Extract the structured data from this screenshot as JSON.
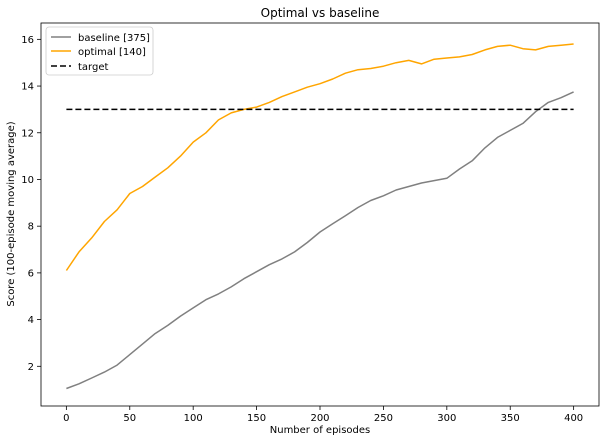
{
  "chart_data": {
    "type": "line",
    "title": "Optimal vs baseline",
    "xlabel": "Number of episodes",
    "ylabel": "Score (100-episode moving average)",
    "xlim": [
      -20,
      420
    ],
    "ylim": [
      0.3,
      16.7
    ],
    "xticks": [
      0,
      50,
      100,
      150,
      200,
      250,
      300,
      350,
      400
    ],
    "yticks": [
      2,
      4,
      6,
      8,
      10,
      12,
      14,
      16
    ],
    "grid": false,
    "legend_position": "top-left",
    "series": [
      {
        "name": "baseline [375]",
        "color": "#808080",
        "style": "solid",
        "x": [
          0,
          10,
          20,
          30,
          40,
          50,
          60,
          70,
          80,
          90,
          100,
          110,
          120,
          130,
          140,
          150,
          160,
          170,
          180,
          190,
          200,
          210,
          220,
          230,
          240,
          250,
          260,
          270,
          280,
          290,
          300,
          310,
          320,
          330,
          340,
          350,
          360,
          370,
          380,
          390,
          400
        ],
        "y": [
          1.05,
          1.25,
          1.5,
          1.75,
          2.05,
          2.5,
          2.95,
          3.4,
          3.75,
          4.15,
          4.5,
          4.85,
          5.1,
          5.4,
          5.75,
          6.05,
          6.35,
          6.6,
          6.9,
          7.3,
          7.75,
          8.1,
          8.45,
          8.8,
          9.1,
          9.3,
          9.55,
          9.7,
          9.85,
          9.95,
          10.05,
          10.45,
          10.8,
          11.35,
          11.8,
          12.1,
          12.4,
          12.9,
          13.3,
          13.5,
          13.75
        ]
      },
      {
        "name": "optimal [140]",
        "color": "#ffa500",
        "style": "solid",
        "x": [
          0,
          10,
          20,
          30,
          40,
          50,
          60,
          70,
          80,
          90,
          100,
          110,
          120,
          130,
          140,
          150,
          160,
          170,
          180,
          190,
          200,
          210,
          220,
          230,
          240,
          250,
          260,
          270,
          280,
          290,
          300,
          310,
          320,
          330,
          340,
          350,
          360,
          370,
          380,
          390,
          400
        ],
        "y": [
          6.1,
          6.9,
          7.5,
          8.2,
          8.7,
          9.4,
          9.7,
          10.1,
          10.5,
          11.0,
          11.6,
          12.0,
          12.55,
          12.85,
          13.0,
          13.1,
          13.3,
          13.55,
          13.75,
          13.95,
          14.1,
          14.3,
          14.55,
          14.7,
          14.75,
          14.85,
          15.0,
          15.1,
          14.95,
          15.15,
          15.2,
          15.25,
          15.35,
          15.55,
          15.7,
          15.75,
          15.6,
          15.55,
          15.7,
          15.75,
          15.8
        ]
      },
      {
        "name": "target",
        "color": "#000000",
        "style": "dashed",
        "x": [
          0,
          400
        ],
        "y": [
          13,
          13
        ]
      }
    ]
  }
}
